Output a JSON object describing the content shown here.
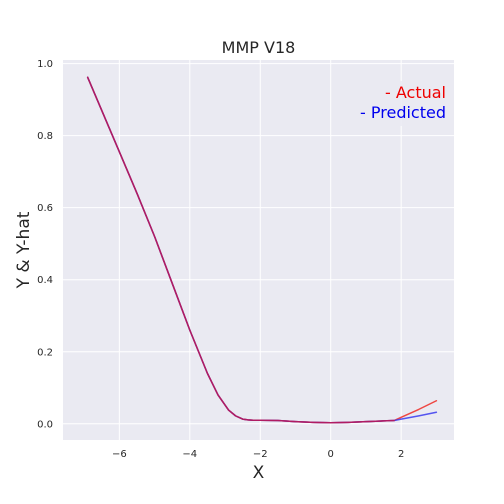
{
  "chart_data": {
    "type": "line",
    "title": "MMP V18",
    "xlabel": "X",
    "ylabel": "Y & Y-hat",
    "xlim": [
      -7.6,
      3.5
    ],
    "ylim": [
      -0.045,
      1.01
    ],
    "xticks": [
      -6,
      -4,
      -2,
      0,
      2
    ],
    "yticks": [
      0.0,
      0.2,
      0.4,
      0.6,
      0.8,
      1.0
    ],
    "xtick_labels": [
      "−6",
      "−4",
      "−2",
      "0",
      "2"
    ],
    "ytick_labels": [
      "0.0",
      "0.2",
      "0.4",
      "0.6",
      "0.8",
      "1.0"
    ],
    "grid": true,
    "legend_position": "top-right",
    "legend": [
      "- Actual",
      "- Predicted"
    ],
    "series": [
      {
        "name": "- Actual",
        "color": "#ee2a24",
        "x": [
          -6.9,
          -6.5,
          -6.0,
          -5.5,
          -5.0,
          -4.5,
          -4.0,
          -3.5,
          -3.2,
          -2.9,
          -2.7,
          -2.5,
          -2.35,
          -2.2,
          -2.0,
          -1.5,
          -1.0,
          -0.5,
          0.0,
          0.5,
          1.0,
          1.5,
          1.8,
          2.0,
          2.5,
          3.0
        ],
        "y": [
          0.962,
          0.87,
          0.755,
          0.64,
          0.52,
          0.39,
          0.26,
          0.14,
          0.08,
          0.038,
          0.022,
          0.013,
          0.011,
          0.01,
          0.01,
          0.009,
          0.006,
          0.004,
          0.003,
          0.004,
          0.006,
          0.008,
          0.009,
          0.018,
          0.04,
          0.064
        ]
      },
      {
        "name": "- Predicted",
        "color": "#3a3aee",
        "x": [
          -6.9,
          -6.5,
          -6.0,
          -5.5,
          -5.0,
          -4.5,
          -4.0,
          -3.5,
          -3.2,
          -2.9,
          -2.7,
          -2.5,
          -2.35,
          -2.2,
          -2.0,
          -1.5,
          -1.0,
          -0.5,
          0.0,
          0.5,
          1.0,
          1.5,
          1.8,
          2.0,
          2.5,
          3.0
        ],
        "y": [
          0.962,
          0.87,
          0.755,
          0.64,
          0.52,
          0.39,
          0.26,
          0.14,
          0.08,
          0.038,
          0.022,
          0.013,
          0.011,
          0.01,
          0.01,
          0.009,
          0.006,
          0.004,
          0.003,
          0.004,
          0.006,
          0.008,
          0.009,
          0.013,
          0.022,
          0.032
        ]
      },
      {
        "name": "",
        "color": "#b01c62",
        "x": [
          -6.9,
          -6.5,
          -6.0,
          -5.5,
          -5.0,
          -4.5,
          -4.0,
          -3.5,
          -3.2,
          -2.9,
          -2.7,
          -2.5,
          -2.35,
          -2.2,
          -2.0,
          -1.5,
          -1.0,
          -0.5,
          0.0,
          0.5,
          1.0,
          1.5,
          1.8
        ],
        "y": [
          0.962,
          0.87,
          0.755,
          0.64,
          0.52,
          0.39,
          0.26,
          0.14,
          0.08,
          0.038,
          0.022,
          0.013,
          0.011,
          0.01,
          0.01,
          0.009,
          0.006,
          0.004,
          0.003,
          0.004,
          0.006,
          0.008,
          0.009
        ]
      }
    ],
    "colors": {
      "plot_background": "#eaeaf2",
      "grid": "#ffffff",
      "actual": "#ee0000",
      "predicted": "#0000ee"
    }
  }
}
